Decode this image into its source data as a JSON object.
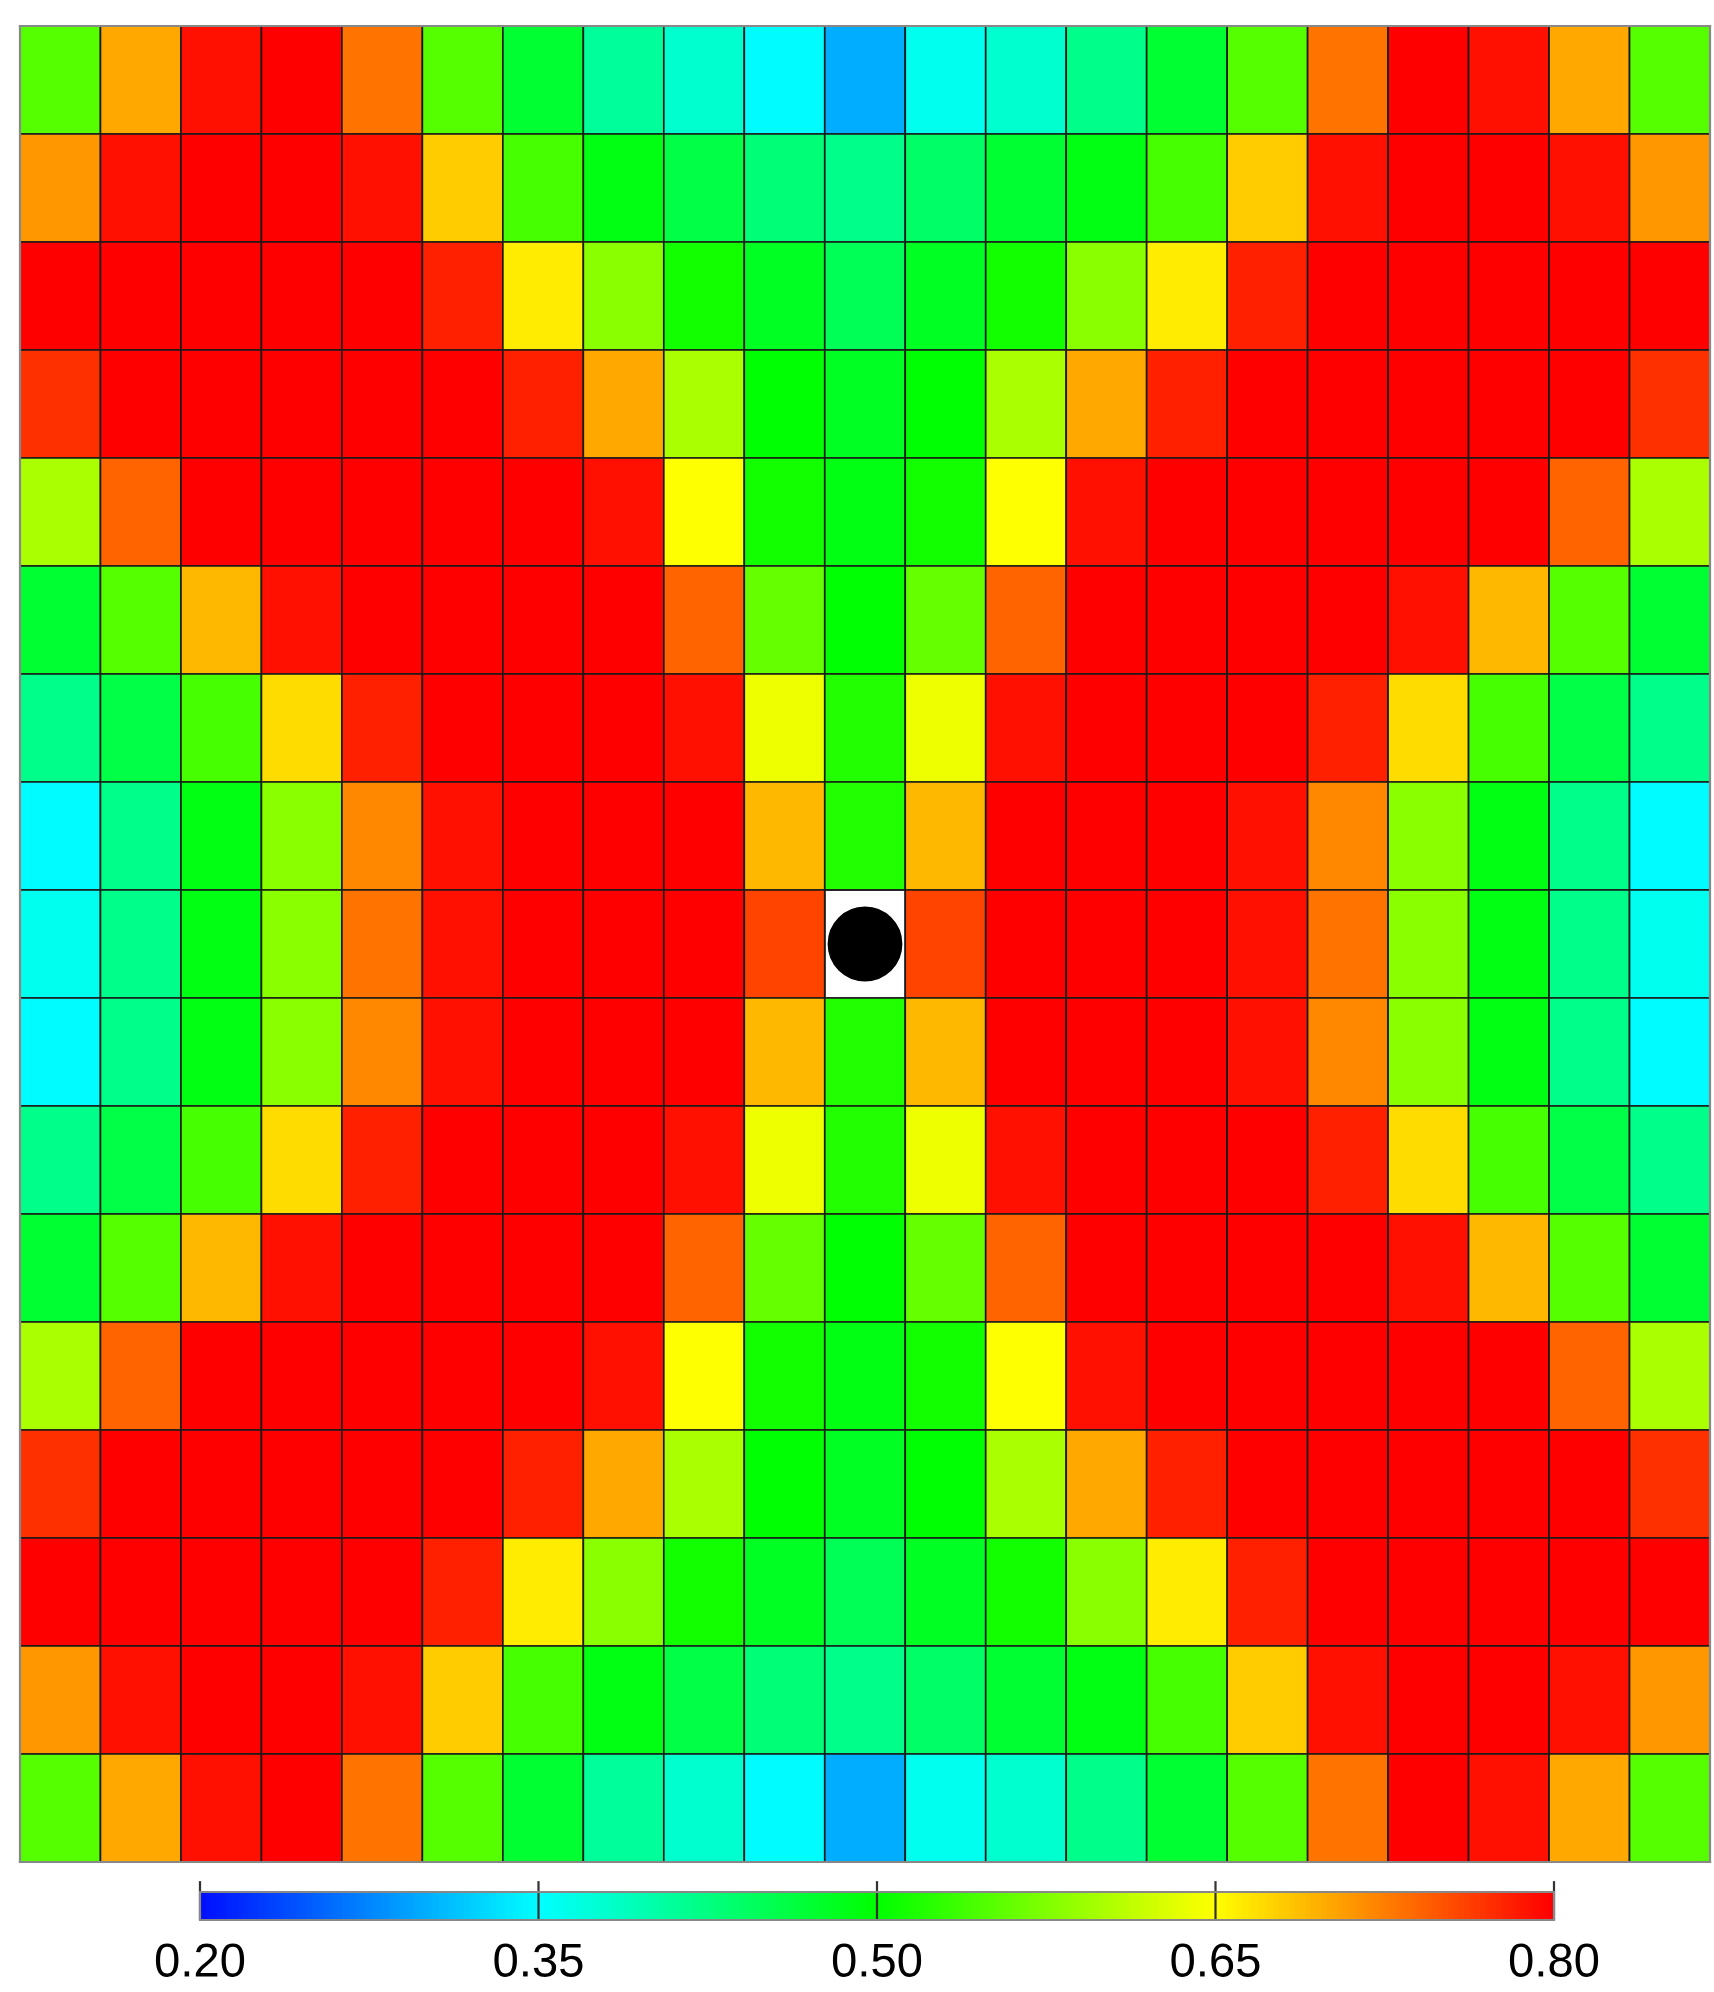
{
  "chart_data": {
    "type": "heatmap",
    "categories": [
      null,
      null,
      null,
      null,
      null,
      null,
      null,
      null,
      null,
      null,
      null,
      null,
      null,
      null,
      null,
      null,
      null,
      null,
      null,
      null,
      null
    ],
    "y_categories": [
      null,
      null,
      null,
      null,
      null,
      null,
      null,
      null,
      null,
      null,
      null,
      null,
      null,
      null,
      null,
      null,
      null
    ],
    "cells": [
      [
        0.55,
        0.7,
        0.79,
        0.8,
        0.73,
        0.55,
        0.47,
        0.41,
        0.38,
        0.35,
        0.3,
        0.36,
        0.38,
        0.42,
        0.47,
        0.55,
        0.73,
        0.8,
        0.79,
        0.7,
        0.55
      ],
      [
        0.71,
        0.79,
        0.8,
        0.8,
        0.79,
        0.68,
        0.54,
        0.49,
        0.46,
        0.43,
        0.42,
        0.44,
        0.47,
        0.49,
        0.54,
        0.68,
        0.79,
        0.8,
        0.8,
        0.79,
        0.71
      ],
      [
        0.8,
        0.8,
        0.8,
        0.8,
        0.8,
        0.78,
        0.66,
        0.58,
        0.51,
        0.48,
        0.45,
        0.48,
        0.51,
        0.58,
        0.66,
        0.78,
        0.8,
        0.8,
        0.8,
        0.8,
        0.8
      ],
      [
        0.77,
        0.8,
        0.8,
        0.8,
        0.8,
        0.8,
        0.78,
        0.7,
        0.6,
        0.5,
        0.48,
        0.5,
        0.6,
        0.7,
        0.78,
        0.8,
        0.8,
        0.8,
        0.8,
        0.8,
        0.77
      ],
      [
        0.6,
        0.74,
        0.8,
        0.8,
        0.8,
        0.8,
        0.8,
        0.79,
        0.65,
        0.51,
        0.49,
        0.51,
        0.65,
        0.79,
        0.8,
        0.8,
        0.8,
        0.8,
        0.8,
        0.74,
        0.6
      ],
      [
        0.47,
        0.55,
        0.69,
        0.79,
        0.8,
        0.8,
        0.8,
        0.8,
        0.74,
        0.56,
        0.5,
        0.56,
        0.74,
        0.8,
        0.8,
        0.8,
        0.8,
        0.79,
        0.69,
        0.55,
        0.47
      ],
      [
        0.42,
        0.46,
        0.54,
        0.67,
        0.78,
        0.8,
        0.8,
        0.8,
        0.79,
        0.64,
        0.52,
        0.64,
        0.79,
        0.8,
        0.8,
        0.8,
        0.78,
        0.67,
        0.54,
        0.46,
        0.42
      ],
      [
        0.35,
        0.42,
        0.49,
        0.58,
        0.72,
        0.79,
        0.8,
        0.8,
        0.8,
        0.69,
        0.52,
        0.69,
        0.8,
        0.8,
        0.8,
        0.79,
        0.72,
        0.58,
        0.49,
        0.42,
        0.35
      ],
      [
        0.36,
        0.42,
        0.49,
        0.58,
        0.73,
        0.79,
        0.8,
        0.8,
        0.8,
        0.76,
        null,
        0.76,
        0.8,
        0.8,
        0.8,
        0.79,
        0.73,
        0.58,
        0.49,
        0.42,
        0.36
      ],
      [
        0.35,
        0.42,
        0.49,
        0.58,
        0.72,
        0.79,
        0.8,
        0.8,
        0.8,
        0.69,
        0.52,
        0.69,
        0.8,
        0.8,
        0.8,
        0.79,
        0.72,
        0.58,
        0.49,
        0.42,
        0.35
      ],
      [
        0.42,
        0.46,
        0.54,
        0.67,
        0.78,
        0.8,
        0.8,
        0.8,
        0.79,
        0.64,
        0.52,
        0.64,
        0.79,
        0.8,
        0.8,
        0.8,
        0.78,
        0.67,
        0.54,
        0.46,
        0.42
      ],
      [
        0.47,
        0.55,
        0.69,
        0.79,
        0.8,
        0.8,
        0.8,
        0.8,
        0.74,
        0.56,
        0.5,
        0.56,
        0.74,
        0.8,
        0.8,
        0.8,
        0.8,
        0.79,
        0.69,
        0.55,
        0.47
      ],
      [
        0.6,
        0.74,
        0.8,
        0.8,
        0.8,
        0.8,
        0.8,
        0.79,
        0.65,
        0.51,
        0.49,
        0.51,
        0.65,
        0.79,
        0.8,
        0.8,
        0.8,
        0.8,
        0.8,
        0.74,
        0.6
      ],
      [
        0.77,
        0.8,
        0.8,
        0.8,
        0.8,
        0.8,
        0.78,
        0.7,
        0.6,
        0.5,
        0.48,
        0.5,
        0.6,
        0.7,
        0.78,
        0.8,
        0.8,
        0.8,
        0.8,
        0.8,
        0.77
      ],
      [
        0.8,
        0.8,
        0.8,
        0.8,
        0.8,
        0.78,
        0.66,
        0.58,
        0.51,
        0.48,
        0.45,
        0.48,
        0.51,
        0.58,
        0.66,
        0.78,
        0.8,
        0.8,
        0.8,
        0.8,
        0.8
      ],
      [
        0.71,
        0.79,
        0.8,
        0.8,
        0.79,
        0.68,
        0.54,
        0.49,
        0.46,
        0.43,
        0.42,
        0.44,
        0.47,
        0.49,
        0.54,
        0.68,
        0.79,
        0.8,
        0.8,
        0.79,
        0.71
      ],
      [
        0.55,
        0.7,
        0.79,
        0.8,
        0.73,
        0.55,
        0.47,
        0.41,
        0.38,
        0.35,
        0.3,
        0.36,
        0.38,
        0.42,
        0.47,
        0.55,
        0.73,
        0.8,
        0.79,
        0.7,
        0.55
      ]
    ],
    "clim": [
      0.2,
      0.8
    ],
    "cticks": [
      {
        "value": 0.2,
        "label": "0.20"
      },
      {
        "value": 0.35,
        "label": "0.35"
      },
      {
        "value": 0.5,
        "label": "0.50"
      },
      {
        "value": 0.65,
        "label": "0.65"
      },
      {
        "value": 0.8,
        "label": "0.80"
      }
    ]
  }
}
